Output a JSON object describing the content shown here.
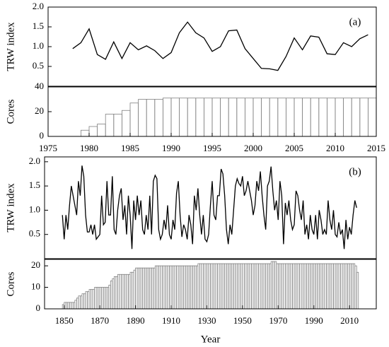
{
  "chart_data": [
    {
      "type": "line",
      "ylabel": "TRW index",
      "annotation": "(a)",
      "color": "#000000",
      "xlim": [
        1975,
        2015
      ],
      "ylim": [
        0,
        2
      ],
      "yticks": [
        0.5,
        {
          "value": 1,
          "label": "1.0"
        },
        1.5,
        {
          "value": 2,
          "label": "2.0"
        }
      ],
      "x": [
        1978,
        1979,
        1980,
        1981,
        1982,
        1983,
        1984,
        1985,
        1986,
        1987,
        1988,
        1989,
        1990,
        1991,
        1992,
        1993,
        1994,
        1995,
        1996,
        1997,
        1998,
        1999,
        2000,
        2001,
        2002,
        2003,
        2004,
        2005,
        2006,
        2007,
        2008,
        2009,
        2010,
        2011,
        2012,
        2013,
        2014
      ],
      "values": [
        0.95,
        1.1,
        1.45,
        0.8,
        0.68,
        1.12,
        0.7,
        1.1,
        0.92,
        1.02,
        0.9,
        0.7,
        0.85,
        1.35,
        1.62,
        1.35,
        1.22,
        0.88,
        1.0,
        1.4,
        1.42,
        0.95,
        0.7,
        0.45,
        0.44,
        0.4,
        0.75,
        1.22,
        0.92,
        1.27,
        1.24,
        0.82,
        0.8,
        1.1,
        1.0,
        1.2,
        1.3
      ]
    },
    {
      "type": "bar",
      "ylabel": "Cores",
      "color": "#808080",
      "xlim": [
        1975,
        2015
      ],
      "ylim": [
        0,
        40
      ],
      "yticks": [
        0,
        20,
        40
      ],
      "xticks": [
        1975,
        1980,
        1985,
        1990,
        1995,
        2000,
        2005,
        2010,
        2015
      ],
      "x": [
        1978,
        1979,
        1980,
        1981,
        1982,
        1983,
        1984,
        1985,
        1986,
        1987,
        1988,
        1989,
        1990,
        1991,
        1992,
        1993,
        1994,
        1995,
        1996,
        1997,
        1998,
        1999,
        2000,
        2001,
        2002,
        2003,
        2004,
        2005,
        2006,
        2007,
        2008,
        2009,
        2010,
        2011,
        2012,
        2013,
        2014
      ],
      "values": [
        0,
        5,
        8,
        10,
        18,
        18,
        21,
        27,
        30,
        30,
        30,
        31,
        31,
        31,
        31,
        31,
        31,
        31,
        31,
        31,
        31,
        31,
        31,
        31,
        31,
        31,
        31,
        31,
        31,
        31,
        31,
        31,
        31,
        31,
        31,
        31,
        31
      ]
    },
    {
      "type": "line",
      "ylabel": "TRW index",
      "annotation": "(b)",
      "color": "#000000",
      "xlim": [
        1839,
        2025
      ],
      "ylim": [
        0,
        2.1
      ],
      "yticks": [
        0.5,
        {
          "value": 1,
          "label": "1.0"
        },
        1.5,
        {
          "value": 2,
          "label": "2.0"
        }
      ],
      "x": [
        1849,
        1850,
        1851,
        1852,
        1853,
        1854,
        1855,
        1856,
        1857,
        1858,
        1859,
        1860,
        1861,
        1862,
        1863,
        1864,
        1865,
        1866,
        1867,
        1868,
        1869,
        1870,
        1871,
        1872,
        1873,
        1874,
        1875,
        1876,
        1877,
        1878,
        1879,
        1880,
        1881,
        1882,
        1883,
        1884,
        1885,
        1886,
        1887,
        1888,
        1889,
        1890,
        1891,
        1892,
        1893,
        1894,
        1895,
        1896,
        1897,
        1898,
        1899,
        1900,
        1901,
        1902,
        1903,
        1904,
        1905,
        1906,
        1907,
        1908,
        1909,
        1910,
        1911,
        1912,
        1913,
        1914,
        1915,
        1916,
        1917,
        1918,
        1919,
        1920,
        1921,
        1922,
        1923,
        1924,
        1925,
        1926,
        1927,
        1928,
        1929,
        1930,
        1931,
        1932,
        1933,
        1934,
        1935,
        1936,
        1937,
        1938,
        1939,
        1940,
        1941,
        1942,
        1943,
        1944,
        1945,
        1946,
        1947,
        1948,
        1949,
        1950,
        1951,
        1952,
        1953,
        1954,
        1955,
        1956,
        1957,
        1958,
        1959,
        1960,
        1961,
        1962,
        1963,
        1964,
        1965,
        1966,
        1967,
        1968,
        1969,
        1970,
        1971,
        1972,
        1973,
        1974,
        1975,
        1976,
        1977,
        1978,
        1979,
        1980,
        1981,
        1982,
        1983,
        1984,
        1985,
        1986,
        1987,
        1988,
        1989,
        1990,
        1991,
        1992,
        1993,
        1994,
        1995,
        1996,
        1997,
        1998,
        1999,
        2000,
        2001,
        2002,
        2003,
        2004,
        2005,
        2006,
        2007,
        2008,
        2009,
        2010,
        2011,
        2012,
        2013,
        2014
      ],
      "values": [
        0.9,
        0.4,
        0.9,
        0.6,
        1.1,
        1.5,
        1.3,
        1.1,
        0.9,
        1.6,
        1.3,
        1.92,
        1.7,
        0.9,
        0.55,
        0.55,
        0.7,
        0.5,
        0.7,
        0.4,
        0.45,
        0.5,
        1.3,
        0.7,
        0.75,
        1.6,
        0.9,
        0.9,
        1.7,
        0.6,
        0.5,
        1.0,
        1.3,
        1.45,
        0.8,
        1.1,
        0.5,
        1.3,
        0.9,
        0.2,
        1.2,
        0.8,
        1.3,
        0.9,
        1.2,
        0.6,
        0.5,
        0.9,
        0.6,
        1.3,
        0.5,
        1.6,
        1.72,
        1.65,
        0.6,
        0.4,
        0.5,
        0.8,
        0.6,
        1.1,
        0.5,
        0.4,
        0.8,
        0.6,
        1.35,
        1.6,
        0.9,
        0.45,
        0.7,
        0.6,
        0.4,
        0.9,
        0.7,
        0.3,
        1.3,
        1.0,
        1.45,
        0.9,
        0.5,
        0.9,
        0.4,
        0.35,
        0.5,
        1.1,
        1.6,
        0.9,
        0.8,
        1.3,
        1.3,
        1.85,
        1.75,
        1.3,
        0.6,
        0.3,
        0.7,
        0.5,
        1.0,
        1.5,
        1.65,
        1.55,
        1.5,
        1.7,
        1.3,
        1.4,
        1.6,
        1.4,
        1.2,
        0.9,
        1.1,
        1.6,
        1.4,
        1.8,
        1.3,
        0.9,
        0.6,
        1.5,
        1.6,
        1.9,
        1.4,
        1.0,
        1.2,
        0.8,
        1.6,
        1.3,
        0.3,
        1.15,
        0.9,
        1.2,
        0.8,
        0.6,
        0.7,
        1.4,
        1.3,
        1.0,
        0.8,
        1.2,
        0.5,
        0.7,
        0.4,
        0.9,
        0.6,
        0.5,
        0.9,
        0.4,
        1.0,
        0.8,
        0.5,
        0.6,
        0.5,
        1.2,
        0.8,
        0.6,
        1.0,
        0.5,
        0.45,
        0.75,
        0.5,
        0.6,
        0.2,
        0.8,
        0.4,
        0.65,
        0.5,
        0.9,
        1.2,
        1.05
      ]
    },
    {
      "type": "bar",
      "ylabel": "Cores",
      "xlabel": "Year",
      "color": "#808080",
      "xlim": [
        1839,
        2025
      ],
      "ylim": [
        0,
        23
      ],
      "yticks": [
        0,
        10,
        20
      ],
      "xticks": [
        1850,
        1870,
        1890,
        1910,
        1930,
        1950,
        1970,
        1990,
        2010
      ],
      "x": [
        1849,
        1850,
        1851,
        1852,
        1853,
        1854,
        1855,
        1856,
        1857,
        1858,
        1859,
        1860,
        1861,
        1862,
        1863,
        1864,
        1865,
        1866,
        1867,
        1868,
        1869,
        1870,
        1871,
        1872,
        1873,
        1874,
        1875,
        1876,
        1877,
        1878,
        1879,
        1880,
        1881,
        1882,
        1883,
        1884,
        1885,
        1886,
        1887,
        1888,
        1889,
        1890,
        1891,
        1892,
        1893,
        1894,
        1895,
        1896,
        1897,
        1898,
        1899,
        1900,
        1901,
        1902,
        1903,
        1904,
        1905,
        1906,
        1907,
        1908,
        1909,
        1910,
        1911,
        1912,
        1913,
        1914,
        1915,
        1916,
        1917,
        1918,
        1919,
        1920,
        1921,
        1922,
        1923,
        1924,
        1925,
        1926,
        1927,
        1928,
        1929,
        1930,
        1931,
        1932,
        1933,
        1934,
        1935,
        1936,
        1937,
        1938,
        1939,
        1940,
        1941,
        1942,
        1943,
        1944,
        1945,
        1946,
        1947,
        1948,
        1949,
        1950,
        1951,
        1952,
        1953,
        1954,
        1955,
        1956,
        1957,
        1958,
        1959,
        1960,
        1961,
        1962,
        1963,
        1964,
        1965,
        1966,
        1967,
        1968,
        1969,
        1970,
        1971,
        1972,
        1973,
        1974,
        1975,
        1976,
        1977,
        1978,
        1979,
        1980,
        1981,
        1982,
        1983,
        1984,
        1985,
        1986,
        1987,
        1988,
        1989,
        1990,
        1991,
        1992,
        1993,
        1994,
        1995,
        1996,
        1997,
        1998,
        1999,
        2000,
        2001,
        2002,
        2003,
        2004,
        2005,
        2006,
        2007,
        2008,
        2009,
        2010,
        2011,
        2012,
        2013,
        2014
      ],
      "values": [
        2,
        3,
        3,
        3,
        3,
        3,
        3,
        4,
        5,
        6,
        6,
        7,
        7,
        8,
        8,
        9,
        9,
        9,
        10,
        10,
        10,
        10,
        10,
        10,
        10,
        10,
        11,
        13,
        14,
        15,
        15,
        16,
        16,
        16,
        16,
        16,
        16,
        16,
        17,
        17,
        18,
        19,
        19,
        19,
        19,
        19,
        19,
        19,
        19,
        19,
        19,
        19,
        20,
        20,
        20,
        20,
        20,
        20,
        20,
        20,
        20,
        20,
        20,
        20,
        20,
        20,
        20,
        20,
        20,
        20,
        20,
        20,
        20,
        20,
        20,
        20,
        21,
        21,
        21,
        21,
        21,
        21,
        21,
        21,
        21,
        21,
        21,
        21,
        21,
        21,
        21,
        21,
        21,
        21,
        21,
        21,
        21,
        21,
        21,
        21,
        21,
        21,
        21,
        21,
        21,
        21,
        21,
        21,
        21,
        21,
        21,
        21,
        21,
        21,
        21,
        21,
        21,
        22,
        22,
        22,
        21,
        21,
        21,
        21,
        21,
        21,
        21,
        21,
        21,
        21,
        21,
        21,
        21,
        21,
        21,
        21,
        21,
        21,
        21,
        21,
        21,
        21,
        21,
        21,
        21,
        21,
        21,
        21,
        21,
        21,
        21,
        21,
        21,
        21,
        21,
        21,
        21,
        21,
        21,
        21,
        21,
        21,
        21,
        21,
        20,
        17
      ]
    }
  ]
}
